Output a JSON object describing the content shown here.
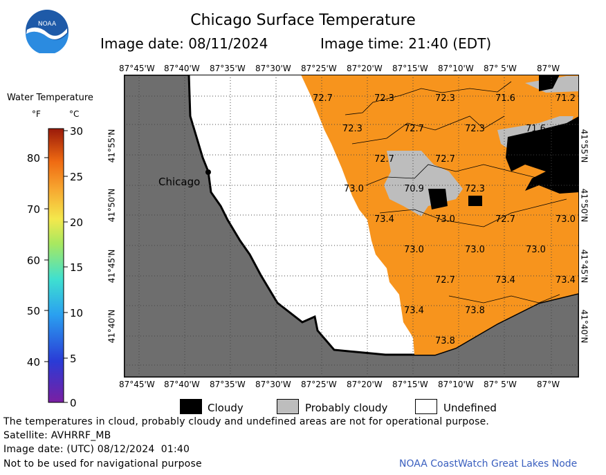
{
  "header": {
    "title": "Chicago Surface Temperature",
    "image_date": "Image date: 08/11/2024",
    "image_time": "Image time: 21:40 (EDT)",
    "logo_text": "NOAA"
  },
  "colorbar": {
    "title": "Water Temperature",
    "unit_f": "°F",
    "unit_c": "°C",
    "ticks_f": [
      "80",
      "70",
      "60",
      "50",
      "40"
    ],
    "ticks_c": [
      "30",
      "25",
      "20",
      "15",
      "10",
      "5",
      "0"
    ]
  },
  "map": {
    "city_label": "Chicago",
    "lon_labels": [
      "87°45'W",
      "87°40'W",
      "87°35'W",
      "87°30'W",
      "87°25'W",
      "87°20'W",
      "87°15'W",
      "87°10'W",
      "87° 5'W",
      "87°W"
    ],
    "lat_labels": [
      "41°55'N",
      "41°50'N",
      "41°45'N",
      "41°40'N"
    ],
    "temperature_labels": [
      {
        "text": "72.7"
      },
      {
        "text": "72.3"
      },
      {
        "text": "72.3"
      },
      {
        "text": "71.6"
      },
      {
        "text": "71.2"
      },
      {
        "text": "72.3"
      },
      {
        "text": "72.7"
      },
      {
        "text": "72.3"
      },
      {
        "text": "71.6"
      },
      {
        "text": "72.7"
      },
      {
        "text": "72.7"
      },
      {
        "text": "73.0"
      },
      {
        "text": "70.9"
      },
      {
        "text": "72.3"
      },
      {
        "text": "73.4"
      },
      {
        "text": "73.0"
      },
      {
        "text": "72.7"
      },
      {
        "text": "73.0"
      },
      {
        "text": "73.0"
      },
      {
        "text": "73.0"
      },
      {
        "text": "73.0"
      },
      {
        "text": "72.7"
      },
      {
        "text": "73.4"
      },
      {
        "text": "73.4"
      },
      {
        "text": "73.4"
      },
      {
        "text": "73.8"
      },
      {
        "text": "73.8"
      }
    ],
    "colors": {
      "water": "#f7941d",
      "land": "#6e6e6e",
      "cloudy": "#000000",
      "probably_cloudy": "#bdbdbd",
      "undefined": "#ffffff"
    }
  },
  "legend": {
    "cloudy": "Cloudy",
    "probably_cloudy": "Probably cloudy",
    "undefined": "Undefined"
  },
  "footer": {
    "note": "The temperatures in cloud, probably cloudy and undefined areas are not for operational purpose.",
    "satellite": "Satellite: AVHRRF_MB",
    "utc_date": "Image date: (UTC) 08/12/2024  01:40",
    "nav_warning": "Not to be used for navigational purpose",
    "credit": "NOAA CoastWatch Great Lakes Node"
  }
}
